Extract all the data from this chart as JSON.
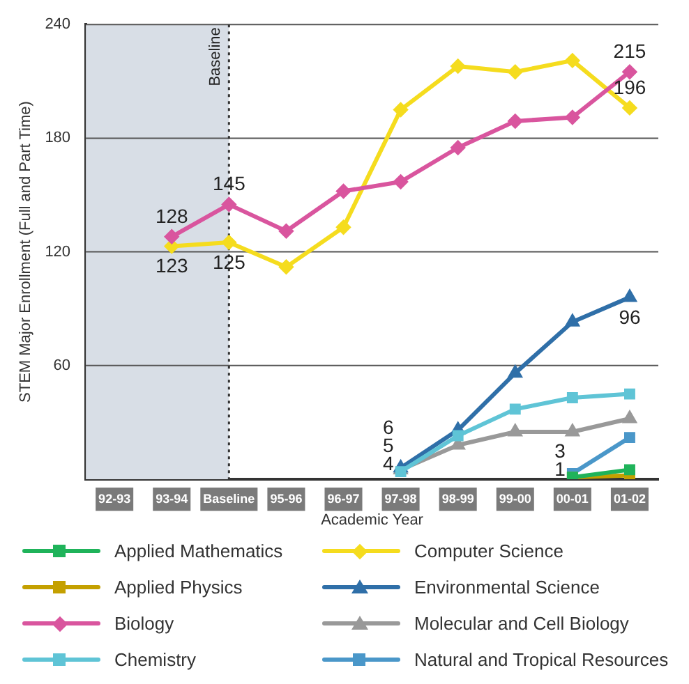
{
  "chart_data": {
    "type": "line",
    "xlabel": "Academic Year",
    "ylabel": "STEM Major Enrollment (Full and Part Time)",
    "categories": [
      "92-93",
      "93-94",
      "Baseline",
      "95-96",
      "96-97",
      "97-98",
      "98-99",
      "99-00",
      "00-01",
      "01-02"
    ],
    "ylim": [
      0,
      240
    ],
    "yticks": [
      60,
      120,
      180,
      240
    ],
    "grid": "y",
    "legend": "bottom",
    "bands": [
      {
        "axis": "x",
        "from": "92-93",
        "to": "Baseline",
        "color": "#d8dee6"
      }
    ],
    "ref_lines": [
      {
        "axis": "x",
        "value": "Baseline",
        "label": "Baseline",
        "color": "#333333",
        "line_style": "dotted"
      }
    ],
    "series": [
      {
        "name": "Applied Mathematics",
        "color": "#1fb35a",
        "marker": "square",
        "values": [
          null,
          null,
          null,
          null,
          null,
          null,
          null,
          null,
          1,
          5
        ]
      },
      {
        "name": "Applied Physics",
        "color": "#c4a000",
        "marker": "square",
        "values": [
          null,
          null,
          null,
          null,
          null,
          null,
          null,
          null,
          1,
          2
        ],
        "value_labels": [
          null,
          null,
          null,
          null,
          null,
          null,
          null,
          null,
          "1",
          null
        ]
      },
      {
        "name": "Biology",
        "color": "#d9559e",
        "marker": "diamond",
        "values": [
          null,
          128,
          145,
          131,
          152,
          157,
          175,
          189,
          191,
          215
        ],
        "value_labels": [
          null,
          "128",
          "145",
          null,
          null,
          null,
          null,
          null,
          null,
          "215"
        ]
      },
      {
        "name": "Chemistry",
        "color": "#5fc4d6",
        "marker": "square",
        "values": [
          null,
          null,
          null,
          null,
          null,
          4,
          23,
          37,
          43,
          45
        ],
        "value_labels": [
          null,
          null,
          null,
          null,
          null,
          "4",
          null,
          null,
          null,
          null
        ]
      },
      {
        "name": "Computer Science",
        "color": "#f5dc1e",
        "marker": "diamond",
        "values": [
          null,
          123,
          125,
          112,
          133,
          195,
          218,
          215,
          221,
          196
        ],
        "value_labels": [
          null,
          "123",
          "125",
          null,
          null,
          null,
          null,
          null,
          null,
          "196"
        ]
      },
      {
        "name": "Environmental Science",
        "color": "#2f6fa8",
        "marker": "triangle",
        "values": [
          null,
          null,
          null,
          null,
          null,
          6,
          26,
          56,
          83,
          96
        ],
        "value_labels": [
          null,
          null,
          null,
          null,
          null,
          "6",
          null,
          null,
          null,
          "96"
        ]
      },
      {
        "name": "Molecular and Cell Biology",
        "color": "#999999",
        "marker": "triangle",
        "values": [
          null,
          null,
          null,
          null,
          null,
          5,
          18,
          25,
          25,
          32
        ],
        "value_labels": [
          null,
          null,
          null,
          null,
          null,
          "5",
          null,
          null,
          null,
          null
        ]
      },
      {
        "name": "Natural and Tropical Resources",
        "color": "#4a97c9",
        "marker": "square",
        "values": [
          null,
          null,
          null,
          null,
          null,
          null,
          null,
          null,
          3,
          22
        ],
        "value_labels": [
          null,
          null,
          null,
          null,
          null,
          null,
          null,
          null,
          "3",
          null
        ]
      }
    ]
  }
}
